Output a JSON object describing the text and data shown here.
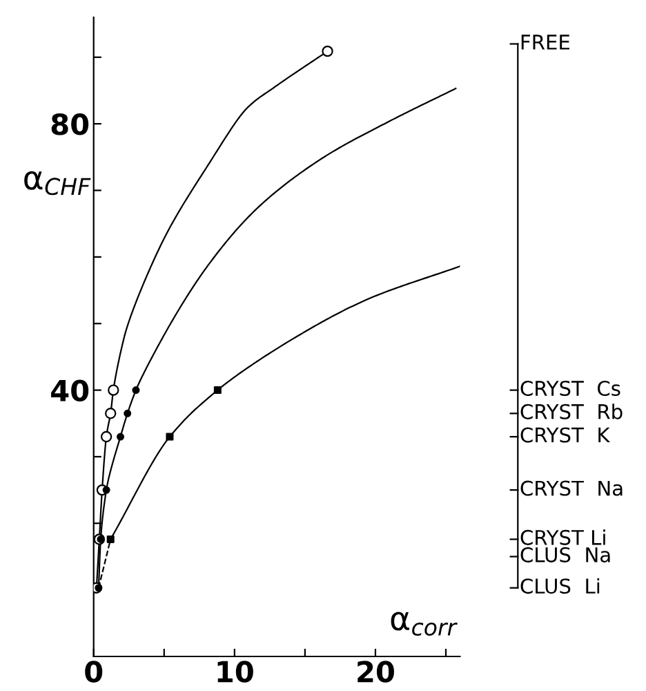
{
  "chart_data": {
    "type": "line",
    "xlabel": "α$_{corr}$",
    "ylabel": "α$_{CHF}$",
    "xlim": [
      0,
      26
    ],
    "ylim": [
      0,
      96
    ],
    "xticks": [
      0,
      {
        "value": 5,
        "label": null
      },
      10,
      {
        "value": 15,
        "label": null
      },
      20,
      {
        "value": 25,
        "label": null
      }
    ],
    "yticks": [
      {
        "value": 10,
        "label": null
      },
      {
        "value": 20,
        "label": null
      },
      {
        "value": 30,
        "label": null
      },
      40,
      {
        "value": 50,
        "label": null
      },
      {
        "value": 60,
        "label": null
      },
      {
        "value": 70,
        "label": null
      },
      80,
      {
        "value": 90,
        "label": null
      }
    ],
    "ref_lines": [
      {
        "axis": "y",
        "value": 92,
        "label": "FREE"
      },
      {
        "axis": "y",
        "value": 40,
        "label": "CRYST  Cs"
      },
      {
        "axis": "y",
        "value": 36.5,
        "label": "CRYST  Rb"
      },
      {
        "axis": "y",
        "value": 33,
        "label": "CRYST  K"
      },
      {
        "axis": "y",
        "value": 25,
        "label": "CRYST  Na"
      },
      {
        "axis": "y",
        "value": 17.6,
        "label": "CRYST Li"
      },
      {
        "axis": "y",
        "value": 15,
        "label": "CLUS  Na"
      },
      {
        "axis": "y",
        "value": 10.3,
        "label": "CLUS  Li"
      }
    ],
    "grid": false,
    "legend": false,
    "series": [
      {
        "color": "#000000",
        "marker": "none",
        "line_style": "solid",
        "x": [
          0.2,
          0.4,
          0.6,
          0.9,
          1.2,
          1.4,
          2.16,
          4.77,
          8.0,
          11.0,
          12.9,
          16.6
        ],
        "values": [
          10.3,
          17.6,
          25,
          33,
          36.5,
          40,
          47.9,
          61.8,
          73.4,
          82.6,
          85.6,
          90.9
        ]
      },
      {
        "color": "#000000",
        "marker": "none",
        "line_style": "solid",
        "x": [
          0.35,
          0.5,
          0.9,
          1.9,
          2.4,
          3.0,
          4.9,
          8.0,
          11.6,
          16.2,
          21.1,
          25.7
        ],
        "values": [
          10.3,
          17.6,
          25,
          33,
          36.5,
          40,
          47.9,
          58.4,
          67.3,
          74.8,
          80.5,
          85.3
        ]
      },
      {
        "color": "#000000",
        "marker": "none",
        "line_style": "solid",
        "x": [
          1.2,
          5.4,
          8.8,
          14.3,
          19.5,
          26.0
        ],
        "values": [
          17.6,
          33,
          40,
          47.9,
          53.7,
          58.6
        ]
      },
      {
        "color": "#000000",
        "marker": "none",
        "line_style": "dashed",
        "x": [
          0.35,
          1.2
        ],
        "values": [
          10.3,
          17.6
        ]
      },
      {
        "type": "scatter",
        "color": "#ffffff",
        "marker": "circle",
        "x": [
          0.2,
          0.4,
          0.6,
          0.9,
          1.2,
          1.4,
          16.6
        ],
        "values": [
          10.3,
          17.6,
          25,
          33,
          36.5,
          40,
          90.9
        ]
      },
      {
        "type": "scatter",
        "color": "#000000",
        "marker": "circle",
        "x": [
          0.35,
          0.5,
          0.9,
          1.9,
          2.4,
          3.0
        ],
        "values": [
          10.3,
          17.6,
          25,
          33,
          36.5,
          40
        ]
      },
      {
        "type": "scatter",
        "color": "#000000",
        "marker": "square",
        "x": [
          1.2,
          5.4,
          8.8
        ],
        "values": [
          17.6,
          33,
          40
        ]
      }
    ]
  }
}
